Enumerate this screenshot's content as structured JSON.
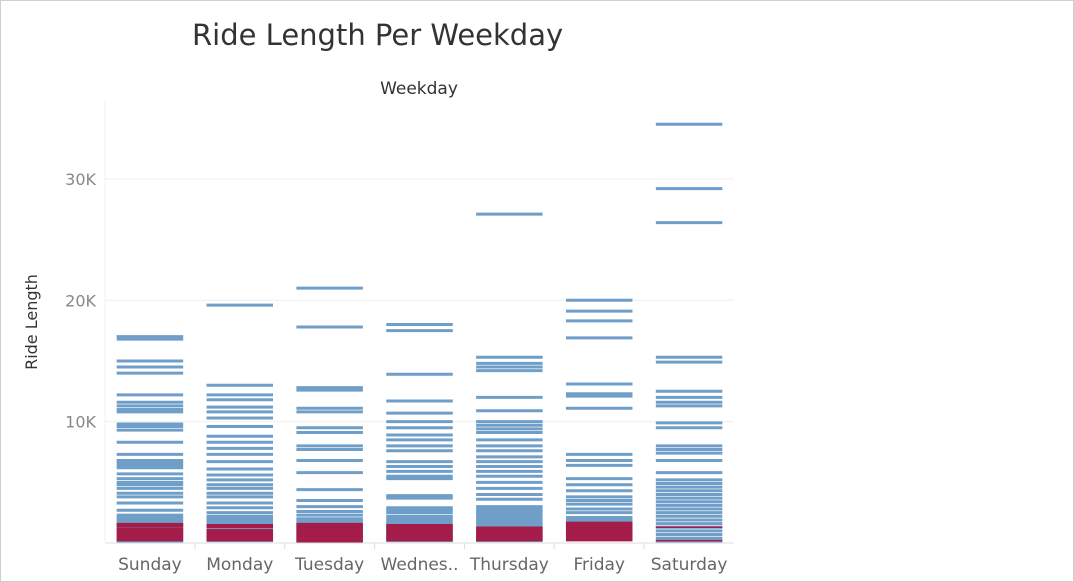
{
  "chart_data": {
    "type": "bar",
    "title": "Ride Length Per Weekday",
    "column_header": "Weekday",
    "ylabel": "Ride Length",
    "xlabel": "",
    "ylim": [
      0,
      36500
    ],
    "yticks": [
      {
        "value": 10000,
        "label": "10K"
      },
      {
        "value": 20000,
        "label": "20K"
      },
      {
        "value": 30000,
        "label": "30K"
      }
    ],
    "grid": true,
    "colors": {
      "member": "#6f9fc8",
      "casual": "#a51c4a",
      "axis": "#dcdcdc",
      "gridline": "#efefef"
    },
    "categories": [
      "Sunday",
      "Monday",
      "Tuesday",
      "Wednes..",
      "Thursday",
      "Friday",
      "Saturday"
    ],
    "series": [
      {
        "values": [
          [
            17000,
            16800,
            15000,
            14500,
            14000,
            12200,
            11600,
            11300,
            11000,
            10800,
            9800,
            9600,
            9300,
            8300,
            7300,
            6800,
            6600,
            6400,
            6200,
            5700,
            5300,
            5000,
            4800,
            4500,
            4100,
            3800,
            3300,
            2700,
            2300,
            2100,
            1900,
            1700,
            1500,
            1300,
            1100,
            900,
            700,
            500,
            300,
            150
          ],
          [
            19600,
            13000,
            12200,
            11800,
            11200,
            10800,
            10300,
            9600,
            8800,
            8300,
            7800,
            7300,
            6700,
            6100,
            5600,
            5200,
            4800,
            4500,
            4100,
            3800,
            3300,
            2900,
            2500,
            2200,
            2000,
            1800,
            1600,
            1400,
            1200,
            1000,
            800,
            600,
            400,
            200
          ],
          [
            21000,
            17800,
            12800,
            12600,
            11100,
            10800,
            9500,
            9100,
            8000,
            7700,
            6800,
            5800,
            4400,
            3500,
            3000,
            2600,
            2300,
            2000,
            1800,
            1600,
            1400,
            1200,
            1000,
            800,
            600,
            400,
            200
          ],
          [
            18000,
            17500,
            13900,
            11700,
            10700,
            10000,
            9500,
            8900,
            8500,
            8000,
            7600,
            6700,
            6300,
            5900,
            5500,
            5300,
            3900,
            3700,
            2900,
            2700,
            2500,
            2200,
            2000,
            1800,
            1600,
            1400,
            1200,
            1000,
            800,
            600,
            400,
            200
          ],
          [
            27100,
            15300,
            14800,
            14500,
            14200,
            12000,
            10900,
            10000,
            9700,
            9400,
            9100,
            8500,
            8000,
            7600,
            7100,
            6700,
            6300,
            5900,
            5500,
            5000,
            4500,
            4000,
            3600,
            3000,
            2800,
            2600,
            2400,
            2200,
            2000,
            1800,
            1600,
            1400,
            1200,
            1000,
            800,
            600,
            400,
            200
          ],
          [
            20000,
            19100,
            18300,
            16900,
            13100,
            12300,
            12100,
            11100,
            7300,
            6800,
            6400,
            5300,
            4800,
            4300,
            3800,
            3500,
            3200,
            2800,
            2500,
            2100,
            1900,
            1700,
            1500,
            1300,
            1100,
            900,
            700,
            500,
            300
          ],
          [
            34500,
            29200,
            26400,
            15300,
            14900,
            12500,
            12000,
            11600,
            11300,
            9900,
            9500,
            8000,
            7700,
            7400,
            6800,
            5800,
            5200,
            4900,
            4600,
            4300,
            4000,
            3700,
            3400,
            3100,
            2800,
            2500,
            2200,
            1900,
            1600,
            1300,
            1000,
            700,
            400,
            150
          ]
        ]
      },
      {
        "values": [
          [
            1600,
            1500,
            1450,
            1350,
            1200,
            1100,
            1000,
            900,
            800,
            700,
            600,
            500,
            400,
            300,
            200
          ],
          [
            1500,
            1400,
            1300,
            1100,
            1000,
            900,
            800,
            700,
            600,
            500,
            400,
            300,
            200
          ],
          [
            1600,
            1500,
            1400,
            1300,
            1200,
            1100,
            1000,
            900,
            800,
            700,
            600,
            500,
            400,
            300,
            200,
            100
          ],
          [
            1500,
            1400,
            1300,
            1200,
            1100,
            1000,
            900,
            800,
            700,
            600,
            500,
            400,
            300,
            200
          ],
          [
            1300,
            1200,
            1100,
            1000,
            900,
            800,
            700,
            600,
            500,
            400,
            300,
            200
          ],
          [
            1700,
            1600,
            1500,
            1400,
            1300,
            1200,
            1100,
            1000,
            900,
            800,
            700,
            600,
            500,
            400,
            300,
            200
          ],
          [
            1300,
            200
          ]
        ]
      }
    ]
  }
}
